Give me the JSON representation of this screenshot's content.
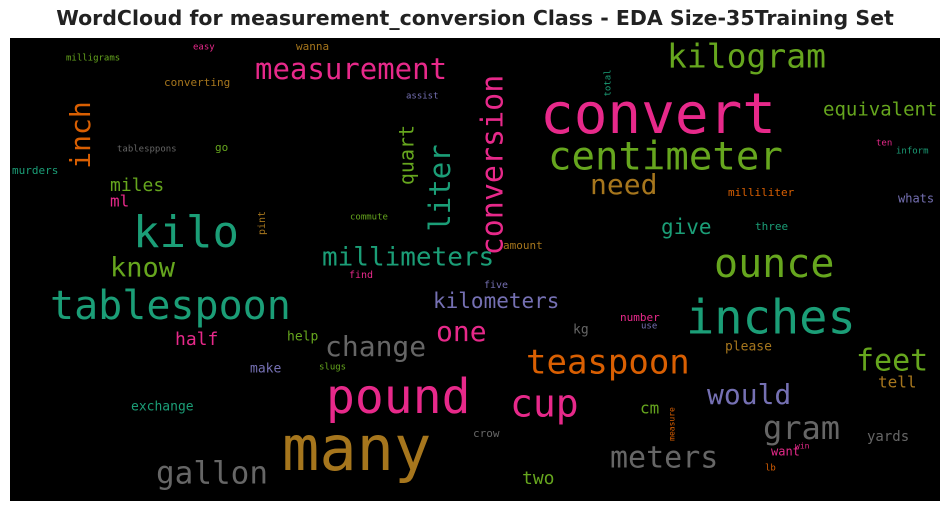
{
  "chart_data": {
    "type": "wordcloud",
    "title": "WordCloud for measurement_conversion Class - EDA Size-35Training Set",
    "background": "#000000",
    "colors": {
      "magenta": "#e7298a",
      "green": "#66a61e",
      "teal": "#1b9e77",
      "orange": "#d95f02",
      "gold": "#a6761d",
      "purple": "#7570b3",
      "gray": "#666666"
    },
    "words": [
      {
        "text": "convert",
        "color": "#e7298a"
      },
      {
        "text": "many",
        "color": "#a6761d"
      },
      {
        "text": "pound",
        "color": "#e7298a"
      },
      {
        "text": "inches",
        "color": "#1b9e77"
      },
      {
        "text": "kilo",
        "color": "#1b9e77"
      },
      {
        "text": "tablespoon",
        "color": "#1b9e77"
      },
      {
        "text": "centimeter",
        "color": "#66a61e"
      },
      {
        "text": "ounce",
        "color": "#66a61e"
      },
      {
        "text": "teaspoon",
        "color": "#d95f02"
      },
      {
        "text": "cup",
        "color": "#e7298a"
      },
      {
        "text": "kilogram",
        "color": "#66a61e"
      },
      {
        "text": "conversion",
        "color": "#e7298a"
      },
      {
        "text": "measurement",
        "color": "#e7298a"
      },
      {
        "text": "liter",
        "color": "#1b9e77"
      },
      {
        "text": "gallon",
        "color": "#666666"
      },
      {
        "text": "meters",
        "color": "#666666"
      },
      {
        "text": "change",
        "color": "#666666"
      },
      {
        "text": "gram",
        "color": "#666666"
      },
      {
        "text": "feet",
        "color": "#66a61e"
      },
      {
        "text": "need",
        "color": "#a6761d"
      },
      {
        "text": "inch",
        "color": "#d95f02"
      },
      {
        "text": "would",
        "color": "#7570b3"
      },
      {
        "text": "one",
        "color": "#e7298a"
      },
      {
        "text": "know",
        "color": "#66a61e"
      },
      {
        "text": "millimeters",
        "color": "#1b9e77"
      },
      {
        "text": "kilometers",
        "color": "#7570b3"
      },
      {
        "text": "quart",
        "color": "#66a61e"
      },
      {
        "text": "give",
        "color": "#1b9e77"
      },
      {
        "text": "equivalent",
        "color": "#66a61e"
      },
      {
        "text": "miles",
        "color": "#66a61e"
      },
      {
        "text": "half",
        "color": "#e7298a"
      },
      {
        "text": "two",
        "color": "#66a61e"
      },
      {
        "text": "tell",
        "color": "#a6761d"
      },
      {
        "text": "yards",
        "color": "#666666"
      },
      {
        "text": "ml",
        "color": "#e7298a"
      },
      {
        "text": "cm",
        "color": "#66a61e"
      },
      {
        "text": "want",
        "color": "#e7298a"
      },
      {
        "text": "help",
        "color": "#66a61e"
      },
      {
        "text": "make",
        "color": "#7570b3"
      },
      {
        "text": "exchange",
        "color": "#1b9e77"
      },
      {
        "text": "kg",
        "color": "#666666"
      },
      {
        "text": "please",
        "color": "#a6761d"
      },
      {
        "text": "number",
        "color": "#e7298a"
      },
      {
        "text": "milliliter",
        "color": "#d95f02"
      },
      {
        "text": "three",
        "color": "#1b9e77"
      },
      {
        "text": "whats",
        "color": "#7570b3"
      },
      {
        "text": "converting",
        "color": "#a6761d"
      },
      {
        "text": "wanna",
        "color": "#a6761d"
      },
      {
        "text": "amount",
        "color": "#a6761d"
      },
      {
        "text": "crow",
        "color": "#666666"
      },
      {
        "text": "five",
        "color": "#7570b3"
      },
      {
        "text": "find",
        "color": "#e7298a"
      },
      {
        "text": "go",
        "color": "#66a61e"
      },
      {
        "text": "murders",
        "color": "#1b9e77"
      },
      {
        "text": "tablesppons",
        "color": "#666666"
      },
      {
        "text": "pint",
        "color": "#a6761d"
      },
      {
        "text": "commute",
        "color": "#66a61e"
      },
      {
        "text": "milligrams",
        "color": "#66a61e"
      },
      {
        "text": "easy",
        "color": "#e7298a"
      },
      {
        "text": "assist",
        "color": "#7570b3"
      },
      {
        "text": "total",
        "color": "#1b9e77"
      },
      {
        "text": "ten",
        "color": "#e7298a"
      },
      {
        "text": "inform",
        "color": "#1b9e77"
      },
      {
        "text": "use",
        "color": "#7570b3"
      },
      {
        "text": "slugs",
        "color": "#66a61e"
      },
      {
        "text": "measure",
        "color": "#d95f02"
      },
      {
        "text": "win",
        "color": "#e7298a"
      },
      {
        "text": "lb",
        "color": "#d95f02"
      }
    ]
  }
}
